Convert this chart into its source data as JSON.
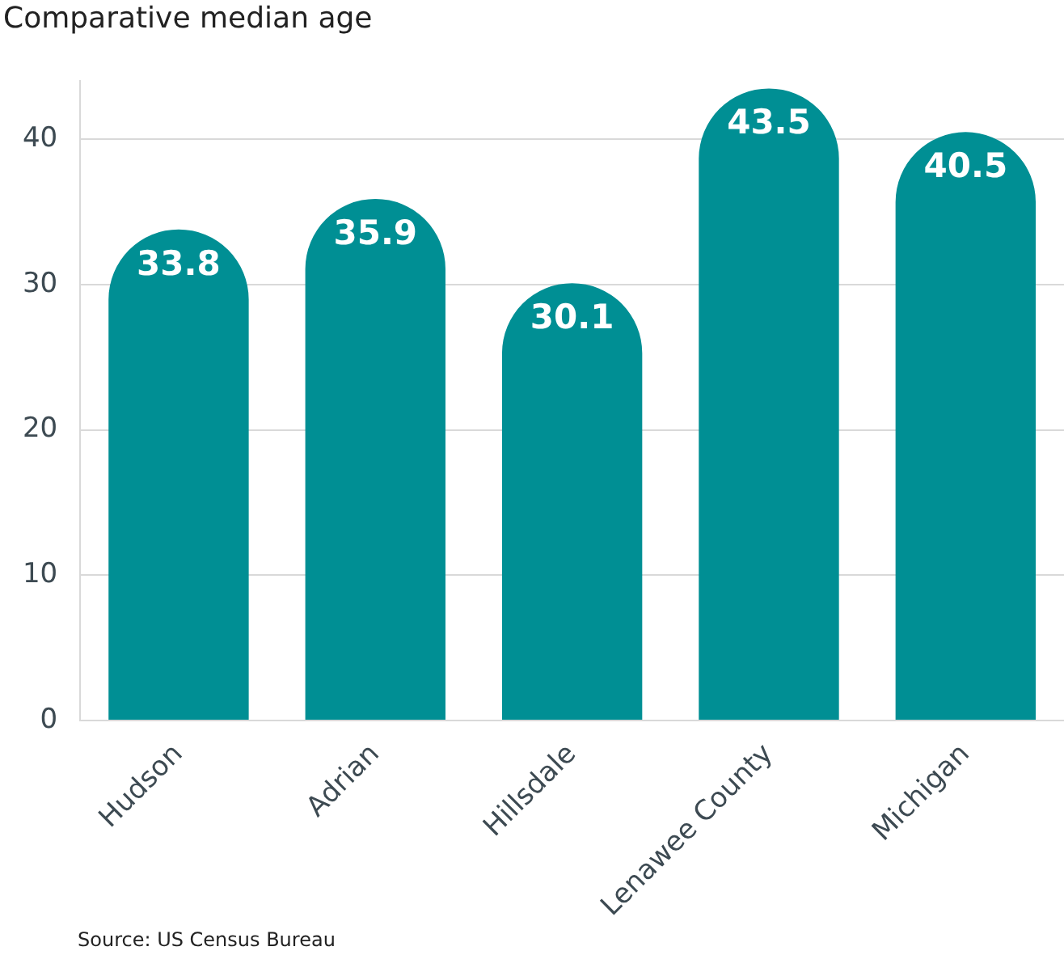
{
  "chart_data": {
    "type": "bar",
    "title": "Comparative median age",
    "categories": [
      "Hudson",
      "Adrian",
      "Hillsdale",
      "Lenawee County",
      "Michigan"
    ],
    "values": [
      33.8,
      35.9,
      30.1,
      43.5,
      40.5
    ],
    "color": "#008f94",
    "ylim": [
      0,
      44
    ],
    "yticks": [
      0,
      10,
      20,
      30,
      40
    ],
    "grid": "y",
    "legend": false,
    "data_labels": true,
    "annotations": [
      "Source: US Census Bureau"
    ]
  }
}
